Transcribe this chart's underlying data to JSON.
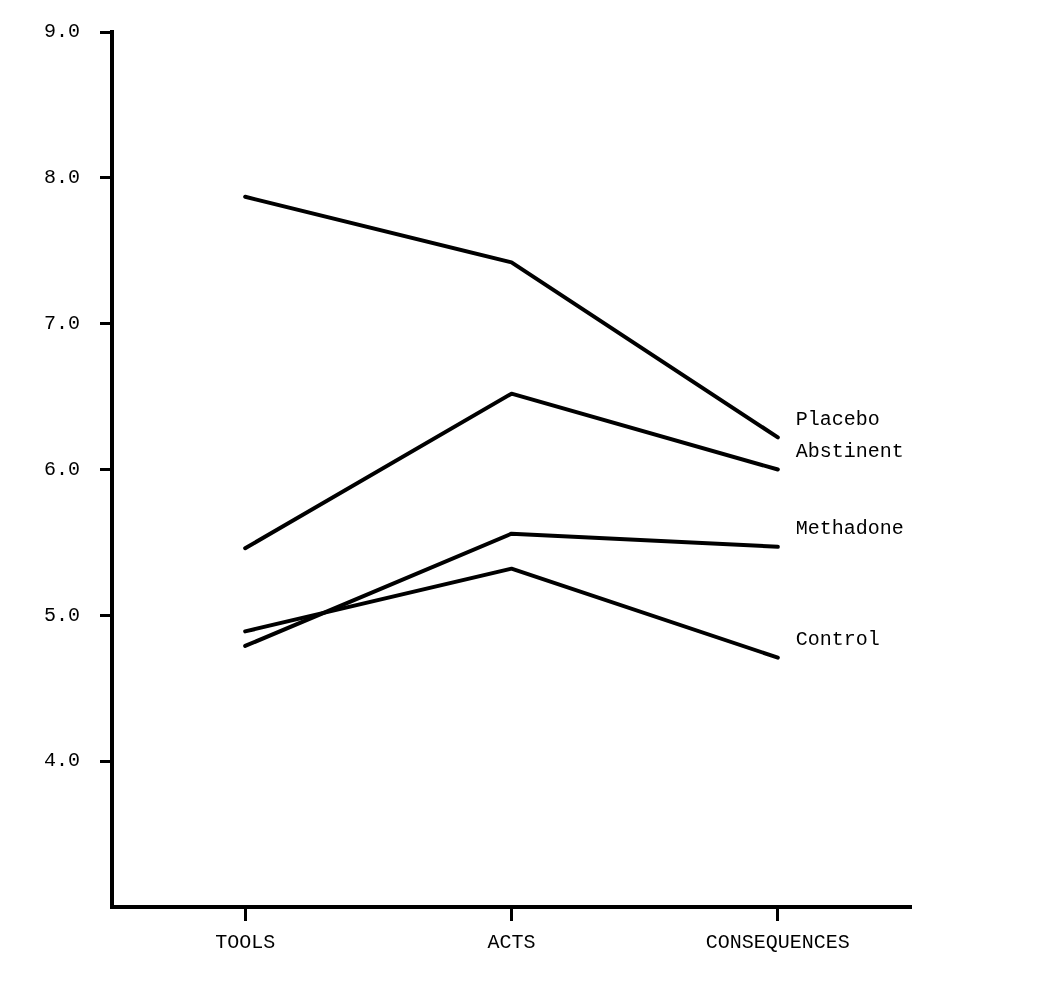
{
  "chart_data": {
    "type": "line",
    "categories": [
      "TOOLS",
      "ACTS",
      "CONSEQUENCES"
    ],
    "series": [
      {
        "name": "Placebo",
        "color": "#000000",
        "values": [
          7.87,
          7.42,
          6.22
        ]
      },
      {
        "name": "Abstinent",
        "color": "#000000",
        "values": [
          5.46,
          6.52,
          6.0
        ]
      },
      {
        "name": "Methadone",
        "color": "#000000",
        "values": [
          4.79,
          5.56,
          5.47
        ]
      },
      {
        "name": "Control",
        "color": "#000000",
        "values": [
          4.89,
          5.32,
          4.71
        ]
      }
    ],
    "ylim": [
      3,
      9
    ],
    "yticks": [
      {
        "value": 4,
        "label": "4.0"
      },
      {
        "value": 5,
        "label": "5.0"
      },
      {
        "value": 6,
        "label": "6.0"
      },
      {
        "value": 7,
        "label": "7.0"
      },
      {
        "value": 8,
        "label": "8.0"
      },
      {
        "value": 9,
        "label": "9.0"
      }
    ],
    "grid": false,
    "legend": false,
    "marker": "none",
    "line_style": "solid"
  }
}
